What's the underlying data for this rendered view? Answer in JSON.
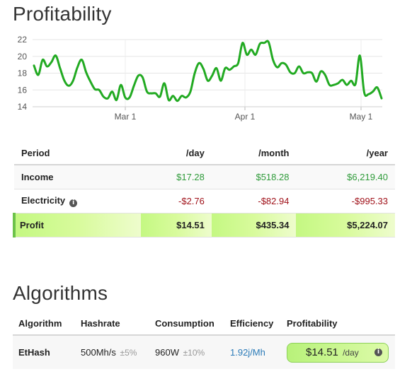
{
  "profitability": {
    "title": "Profitability",
    "chart_data": {
      "type": "line",
      "x_ticks": [
        "Mar 1",
        "Apr 1",
        "May 1"
      ],
      "y_ticks": [
        14,
        16,
        18,
        20,
        22
      ],
      "ylim": [
        14,
        22
      ],
      "color": "#22aa22",
      "grid": true,
      "series": [
        {
          "values": [
            18.9,
            17.8,
            19.6,
            18.8,
            19.3,
            20.1,
            18.6,
            17.1,
            16.5,
            17.1,
            18.7,
            19.6,
            18.1,
            17.0,
            16.1,
            16.0,
            15.2,
            15.0,
            15.8,
            14.8,
            16.6,
            15.1,
            15.1,
            16.5,
            17.7,
            17.5,
            15.8,
            15.6,
            15.6,
            15.2,
            16.8,
            14.8,
            15.3,
            14.7,
            15.3,
            15.1,
            15.8,
            18.0,
            19.2,
            18.5,
            17.1,
            17.7,
            18.6,
            17.1,
            18.6,
            18.4,
            18.8,
            19.2,
            21.6,
            20.2,
            20.8,
            20.2,
            21.5,
            21.6,
            21.7,
            19.6,
            18.7,
            19.2,
            19.0,
            18.1,
            18.0,
            18.8,
            18.0,
            18.1,
            18.0,
            17.0,
            18.2,
            17.8,
            16.6,
            16.6,
            16.8,
            17.2,
            16.6,
            17.1,
            16.7,
            20.1,
            15.7,
            15.5,
            15.8,
            16.3,
            15.0
          ]
        }
      ]
    }
  },
  "period_table": {
    "headers": [
      "Period",
      "/day",
      "/month",
      "/year"
    ],
    "income": {
      "label": "Income",
      "day": "$17.28",
      "month": "$518.28",
      "year": "$6,219.40"
    },
    "electricity": {
      "label": "Electricity",
      "day": "-$2.76",
      "month": "-$82.94",
      "year": "-$995.33"
    },
    "profit": {
      "label": "Profit",
      "day": "$14.51",
      "month": "$435.34",
      "year": "$5,224.07"
    },
    "colors": {
      "positive": "#2f9b3a",
      "negative": "#a0121a",
      "profit_bg": "#c4f882"
    }
  },
  "algorithms": {
    "title": "Algorithms",
    "headers": [
      "Algorithm",
      "Hashrate",
      "Consumption",
      "Efficiency",
      "Profitability"
    ],
    "rows": [
      {
        "algorithm": "EtHash",
        "hashrate": "500Mh/s",
        "hashrate_tol": "±5%",
        "consumption": "960W",
        "consumption_tol": "±10%",
        "efficiency": "1.92j/Mh",
        "profit": "$14.51",
        "profit_period": "/day"
      }
    ]
  }
}
